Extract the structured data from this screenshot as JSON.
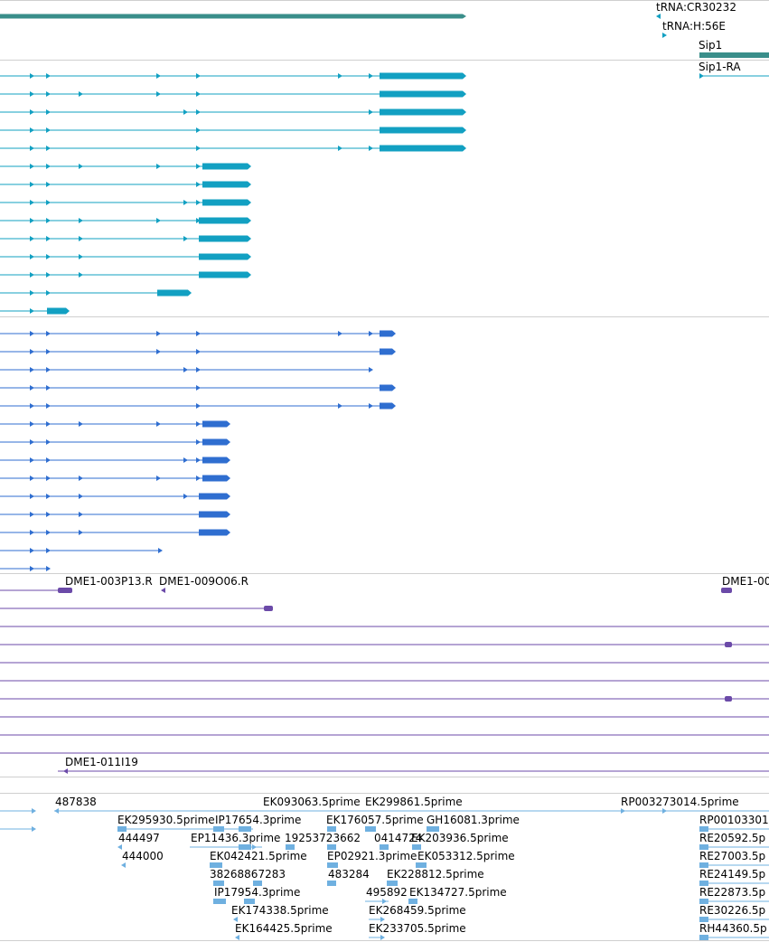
{
  "colors": {
    "divider": "#cfcfcf",
    "gene_span": "#3a8e8a",
    "mrna_teal": "#12a0c2",
    "mrna_blue": "#2f6ed0",
    "clone": "#6b4aa8",
    "est": "#6fb0e0"
  },
  "tracks": [
    {
      "name": "gene-track",
      "labels": [
        "tRNA:CR30232",
        "tRNA:H:56E",
        "Sip1"
      ]
    },
    {
      "name": "mrna-teal-track",
      "labels": [
        "Sip1-RA"
      ]
    },
    {
      "name": "mrna-blue-track",
      "labels": []
    },
    {
      "name": "clone-track",
      "labels": [
        "DME1-003P13.R",
        "DME1-009O06.R",
        "DME1-00",
        "DME1-011I19"
      ]
    },
    {
      "name": "est-track",
      "labels": [
        "487838",
        "EK093063.5prime",
        "EK299861.5prime",
        "RP003273014.5prime",
        "EK295930.5prime",
        "IP17654.3prime",
        "EK176057.5prime",
        "GH16081.3prime",
        "RP00103301",
        "444497",
        "EP11436.3prime",
        "19253723662",
        "0414724",
        "EK203936.5prime",
        "RE20592.5p",
        "444000",
        "EK042421.5prime",
        "EP02921.3prime",
        "EK053312.5prime",
        "RE27003.5p",
        "38268867283",
        "483284",
        "EK228812.5prime",
        "RE24149.5p",
        "IP17954.3prime",
        "495892",
        "EK134727.5prime",
        "RE22873.5p",
        "EK174338.5prime",
        "EK268459.5prime",
        "RE30226.5p",
        "EK164425.5prime",
        "EK233705.5prime",
        "RH44360.5p"
      ]
    }
  ]
}
